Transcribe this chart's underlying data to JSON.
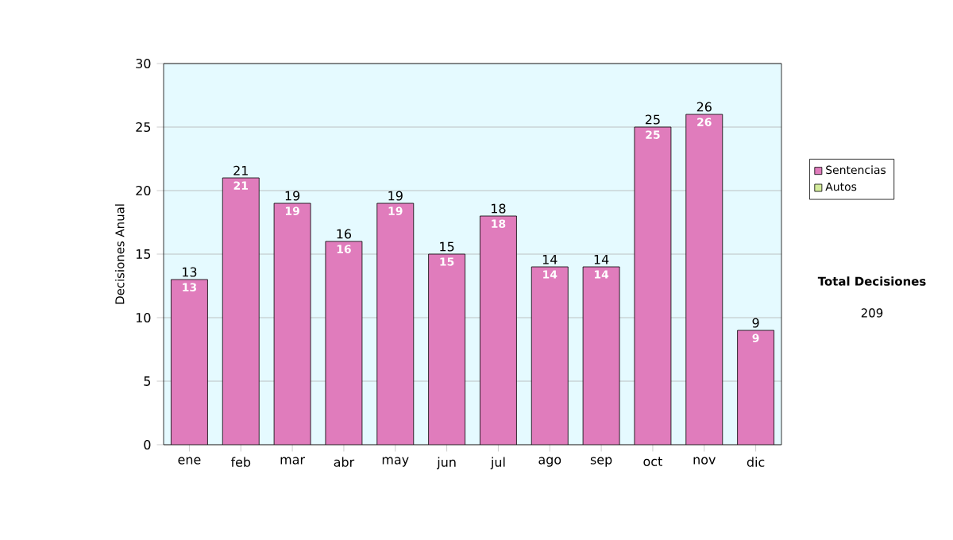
{
  "chart_data": {
    "type": "bar",
    "ylabel": "Decisiones Anual",
    "categories": [
      "ene",
      "feb",
      "mar",
      "abr",
      "may",
      "jun",
      "jul",
      "ago",
      "sep",
      "oct",
      "nov",
      "dic"
    ],
    "stacked": true,
    "series": [
      {
        "name": "Sentencias",
        "color": "#e07cbc",
        "values": [
          13,
          21,
          19,
          16,
          19,
          15,
          18,
          14,
          14,
          25,
          26,
          9
        ],
        "value_labels": [
          "13",
          "21",
          "19",
          "16",
          "19",
          "15",
          "18",
          "14",
          "14",
          "25",
          "26",
          "9"
        ]
      },
      {
        "name": "Autos",
        "color": "#d4ec9c",
        "values": [
          0,
          0,
          0,
          0,
          0,
          0,
          0,
          0,
          0,
          0,
          0,
          0
        ]
      }
    ],
    "totals": [
      "13",
      "21",
      "19",
      "16",
      "19",
      "15",
      "18",
      "14",
      "14",
      "25",
      "26",
      "9"
    ],
    "ylim": [
      0,
      30
    ],
    "yticks": [
      0,
      5,
      10,
      15,
      20,
      25,
      30
    ],
    "grid": "y",
    "legend": "right",
    "annotations": [
      "Total Decisiones",
      "209"
    ]
  }
}
